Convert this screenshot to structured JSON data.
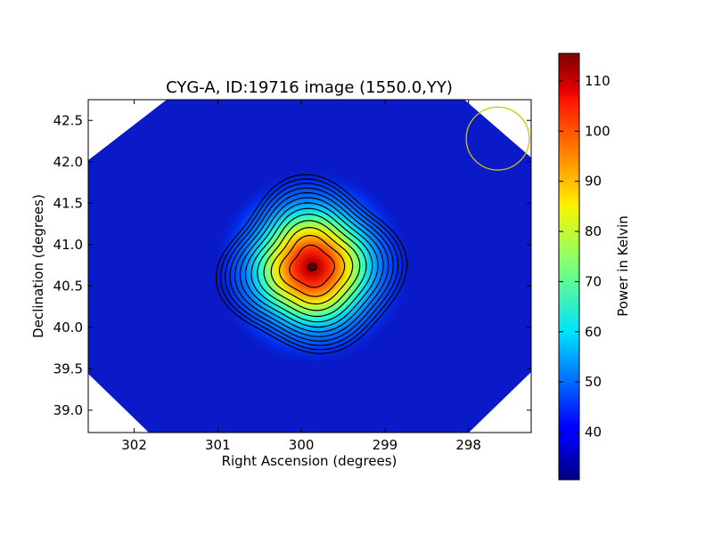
{
  "chart_data": {
    "type": "heatmap",
    "title": "CYG-A, ID:19716 image (1550.0,YY)",
    "xlabel": "Right Ascension (degrees)",
    "ylabel": "Declination (degrees)",
    "xlim": [
      302.55,
      297.25
    ],
    "ylim": [
      38.73,
      42.75
    ],
    "x_ticks": [
      302,
      301,
      300,
      299,
      298
    ],
    "y_ticks": [
      39.0,
      39.5,
      40.0,
      40.5,
      41.0,
      41.5,
      42.0,
      42.5
    ],
    "x_tick_labels": [
      "302",
      "301",
      "300",
      "299",
      "298"
    ],
    "y_tick_labels": [
      "39.0",
      "39.5",
      "40.0",
      "40.5",
      "41.0",
      "41.5",
      "42.0",
      "42.5"
    ],
    "source": {
      "ra": 299.87,
      "dec": 40.73,
      "peak_power": 115,
      "background_power": 35
    },
    "contour_levels": [
      37,
      43,
      49,
      55,
      61,
      67,
      73,
      79,
      85,
      91,
      97,
      103,
      109
    ],
    "beam_circle": {
      "ra": 297.65,
      "dec": 42.28,
      "radius_deg": 0.38
    },
    "colorbar": {
      "label": "Power in Kelvin",
      "vmin": 30.5,
      "vmax": 115.5,
      "ticks": [
        40,
        50,
        60,
        70,
        80,
        90,
        100,
        110
      ],
      "tick_labels": [
        "40",
        "50",
        "60",
        "70",
        "80",
        "90",
        "100",
        "110"
      ],
      "colormap": "jet"
    }
  },
  "colors": {
    "background_field": "#0a1ac8",
    "beam_circle": "#c8c800",
    "contour": "#000000",
    "frame": "#000000"
  }
}
